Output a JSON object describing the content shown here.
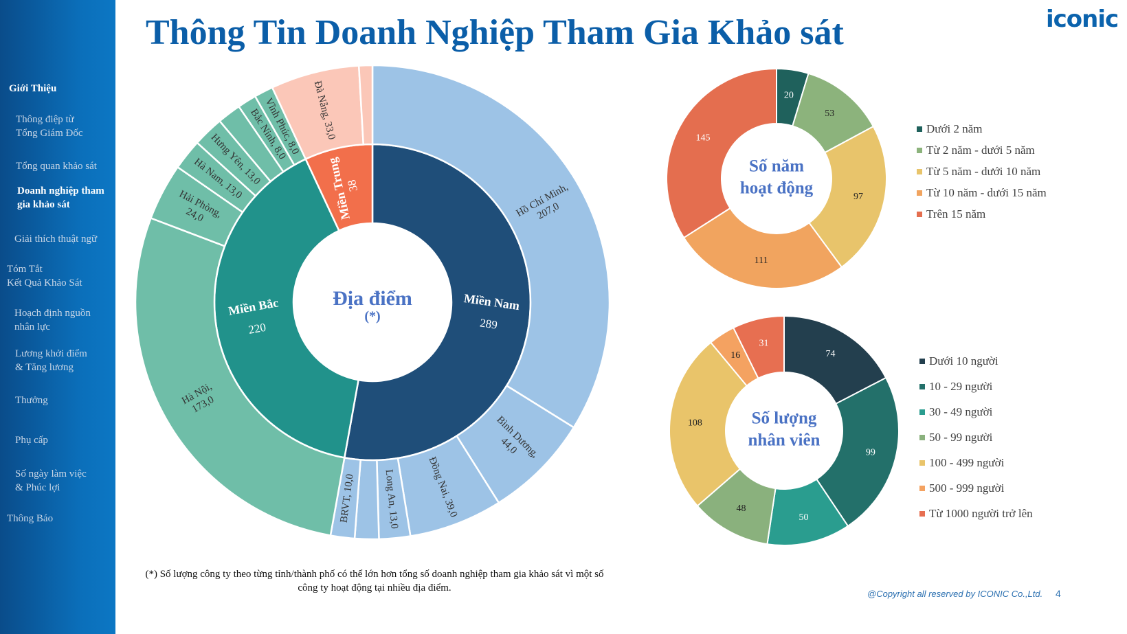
{
  "sidebar": {
    "items": [
      {
        "label": "Giới Thiệu",
        "type": "head"
      },
      {
        "label": "Thông điệp từ\nTổng Giám Đốc"
      },
      {
        "label": "Tổng quan khảo sát"
      },
      {
        "label": "Doanh nghiệp tham\ngia khảo sát",
        "type": "active"
      },
      {
        "label": "Giải thích thuật ngữ"
      },
      {
        "label": "Tóm Tắt\nKết Quả Khảo Sát"
      },
      {
        "label": "Hoạch định nguồn\nnhân lực"
      },
      {
        "label": "Lương khởi điểm\n& Tăng lương"
      },
      {
        "label": "Thưởng"
      },
      {
        "label": "Phụ cấp"
      },
      {
        "label": "Số ngày làm việc\n& Phúc lợi"
      },
      {
        "label": "Thông Báo"
      }
    ]
  },
  "header": {
    "title": "Thông Tin Doanh Nghiệp Tham Gia Khảo sát",
    "logo": "iconic"
  },
  "footnote": "(*) Số lượng công ty theo từng tỉnh/thành phố có thể lớn hơn tổng số doanh nghiệp tham gia khảo sát vì một số công ty hoạt động tại nhiều địa điểm.",
  "footer": {
    "copyright": "@Copyright all reserved by ICONIC Co.,Ltd.",
    "page": "4"
  },
  "chart_data": [
    {
      "type": "sunburst",
      "center_title": "Địa điểm",
      "center_note": "(*)",
      "regions": [
        {
          "name": "Miền Nam",
          "value": 289,
          "color": "#1f4e79",
          "child_color": "#9dc3e6",
          "children": [
            {
              "name": "Hồ Chí Minh",
              "value": 207
            },
            {
              "name": "Bình Dương",
              "value": 44
            },
            {
              "name": "Đồng Nai",
              "value": 39
            },
            {
              "name": "Long An",
              "value": 13
            },
            {
              "name": "",
              "value": 10
            },
            {
              "name": "BRVT",
              "value": 10
            }
          ]
        },
        {
          "name": "Miền Bắc",
          "value": 220,
          "color": "#21928b",
          "child_color": "#6fbea8",
          "children": [
            {
              "name": "Hà Nội",
              "value": 173
            },
            {
              "name": "Hải Phòng",
              "value": 24
            },
            {
              "name": "Hà Nam",
              "value": 13
            },
            {
              "name": "Hưng Yên",
              "value": 13
            },
            {
              "name": "",
              "value": 10
            },
            {
              "name": "Bắc Ninh",
              "value": 8
            },
            {
              "name": "Vĩnh Phúc",
              "value": 8
            }
          ]
        },
        {
          "name": "Miền Trung",
          "value": 38,
          "color": "#f26f4b",
          "child_color": "#fbc7b8",
          "children": [
            {
              "name": "Đà Nẵng",
              "value": 33
            },
            {
              "name": "",
              "value": 5
            }
          ]
        }
      ]
    },
    {
      "type": "donut",
      "center_title": [
        "Số năm",
        "hoạt động"
      ],
      "categories": [
        "Dưới 2 năm",
        "Từ 2 năm - dưới 5 năm",
        "Từ 5 năm - dưới 10 năm",
        "Từ 10 năm - dưới 15 năm",
        "Trên 15 năm"
      ],
      "values": [
        20,
        53,
        97,
        111,
        145
      ],
      "colors": [
        "#1f615c",
        "#8cb37c",
        "#e8c46b",
        "#f1a45f",
        "#e46e4f"
      ],
      "legend": "right"
    },
    {
      "type": "donut",
      "center_title": [
        "Số lượng",
        "nhân viên"
      ],
      "categories": [
        "Dưới 10 người",
        "10 - 29 người",
        "30 - 49 người",
        "50 - 99 người",
        "100 - 499 người",
        "500 - 999 người",
        "Từ 1000 người trở lên"
      ],
      "values": [
        74,
        99,
        50,
        48,
        108,
        16,
        31
      ],
      "colors": [
        "#233f4e",
        "#23706a",
        "#2a9d8f",
        "#8ab17d",
        "#e9c46a",
        "#f4a261",
        "#e76f51"
      ],
      "legend": "right"
    }
  ]
}
